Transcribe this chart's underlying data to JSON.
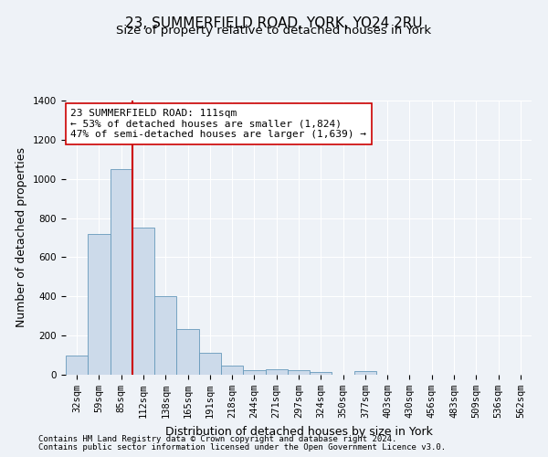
{
  "title": "23, SUMMERFIELD ROAD, YORK, YO24 2RU",
  "subtitle": "Size of property relative to detached houses in York",
  "xlabel": "Distribution of detached houses by size in York",
  "ylabel": "Number of detached properties",
  "annotation_line1": "23 SUMMERFIELD ROAD: 111sqm",
  "annotation_line2": "← 53% of detached houses are smaller (1,824)",
  "annotation_line3": "47% of semi-detached houses are larger (1,639) →",
  "footer1": "Contains HM Land Registry data © Crown copyright and database right 2024.",
  "footer2": "Contains public sector information licensed under the Open Government Licence v3.0.",
  "bin_labels": [
    "32sqm",
    "59sqm",
    "85sqm",
    "112sqm",
    "138sqm",
    "165sqm",
    "191sqm",
    "218sqm",
    "244sqm",
    "271sqm",
    "297sqm",
    "324sqm",
    "350sqm",
    "377sqm",
    "403sqm",
    "430sqm",
    "456sqm",
    "483sqm",
    "509sqm",
    "536sqm",
    "562sqm"
  ],
  "bar_values": [
    100,
    720,
    1050,
    750,
    400,
    235,
    110,
    45,
    25,
    30,
    25,
    15,
    0,
    20,
    0,
    0,
    0,
    0,
    0,
    0,
    0
  ],
  "bar_color": "#ccdaea",
  "bar_edge_color": "#6699bb",
  "vline_color": "#cc0000",
  "vline_x": 2.5,
  "ylim": [
    0,
    1400
  ],
  "yticks": [
    0,
    200,
    400,
    600,
    800,
    1000,
    1200,
    1400
  ],
  "bg_color": "#eef2f7",
  "plot_bg_color": "#eef2f7",
  "grid_color": "#ffffff",
  "annotation_box_facecolor": "#ffffff",
  "annotation_box_edgecolor": "#cc0000",
  "title_fontsize": 11,
  "subtitle_fontsize": 9.5,
  "axis_label_fontsize": 9,
  "tick_fontsize": 7.5,
  "annotation_fontsize": 8,
  "footer_fontsize": 6.5
}
